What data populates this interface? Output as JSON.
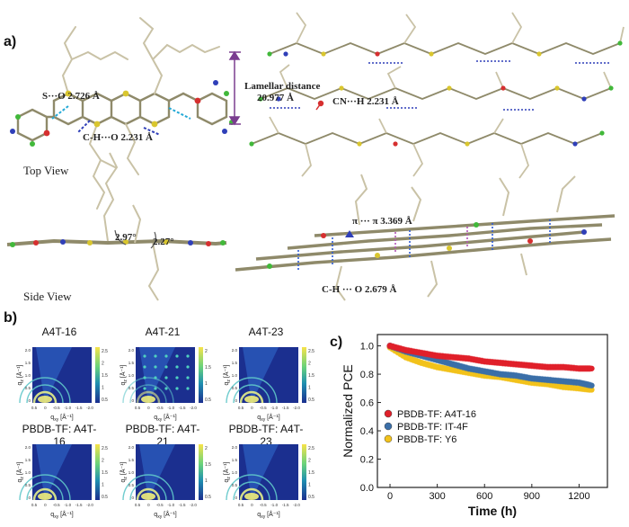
{
  "panel_a": {
    "letter": "a)",
    "top_view_label": "Top View",
    "side_view_label": "Side View",
    "annotations": {
      "s_o": "S···O 2.726 Å",
      "ch_o_top": "C-H···O 2.231 Å",
      "lamellar_title": "Lamellar distance",
      "lamellar_value": "20.977 Å",
      "cn_h": "CN···H 2.231 Å",
      "angle1": "2.97°",
      "angle2": "2.27°",
      "pi_pi": "π ··· π  3.369 Å",
      "ch_o_side": "C-H ··· O  2.679 Å"
    },
    "colors": {
      "lamellar_bracket": "#7a3d8f",
      "carbon": "#8f8a6a",
      "hydrogen": "#e4e0cc",
      "sulfur": "#d9c62e",
      "oxygen": "#d62f2f",
      "nitrogen": "#2f3fb8",
      "fluorine": "#41b83a",
      "hbond_blue": "#2f5cd4",
      "hbond_purple": "#b455b8",
      "hbond_cyan": "#24a9d6"
    }
  },
  "panel_b": {
    "letter": "b)",
    "maps": [
      {
        "title": "A4T-16",
        "colorbar": [
          "2.5",
          "2",
          "1.5",
          "1",
          "0.5"
        ]
      },
      {
        "title": "A4T-21",
        "colorbar": [
          "2",
          "1.5",
          "1",
          "0.5"
        ]
      },
      {
        "title": "A4T-23",
        "colorbar": [
          "2.5",
          "2",
          "1.5",
          "1",
          "0.5"
        ]
      },
      {
        "title": "PBDB-TF: A4T-16",
        "colorbar": [
          "2.5",
          "2",
          "1.5",
          "1",
          "0.5"
        ]
      },
      {
        "title": "PBDB-TF: A4T-21",
        "colorbar": [
          "2",
          "1.5",
          "1",
          "0.5"
        ]
      },
      {
        "title": "PBDB-TF: A4T-23",
        "colorbar": [
          "2.5",
          "2",
          "1.5",
          "1",
          "0.5"
        ]
      }
    ],
    "x_axis_label": "q",
    "x_axis_sub": "xy",
    "x_axis_unit": " [Å⁻¹]",
    "y_axis_label": "q",
    "y_axis_sub": "z",
    "y_axis_unit": " [Å⁻¹]",
    "x_ticks": [
      "0.5",
      "0",
      "-0.5",
      "-1.0",
      "-1.5",
      "-2.0"
    ],
    "y_ticks": [
      "2.0",
      "1.5",
      "1.0",
      "0.5",
      "0"
    ]
  },
  "panel_c": {
    "letter": "c)",
    "chart_data": {
      "type": "scatter",
      "xlabel": "Time (h)",
      "ylabel": "Normalized PCE",
      "xlim": [
        -80,
        1380
      ],
      "ylim": [
        0.0,
        1.08
      ],
      "xticks": [
        0,
        300,
        600,
        900,
        1200
      ],
      "yticks": [
        0.0,
        0.2,
        0.4,
        0.6,
        0.8,
        1.0
      ],
      "legend_position": "center-left",
      "series": [
        {
          "name": "PBDB-TF: A4T-16",
          "color": "#e0202a",
          "x": [
            0,
            100,
            200,
            300,
            400,
            500,
            600,
            700,
            800,
            900,
            1000,
            1100,
            1200,
            1280
          ],
          "y": [
            1.0,
            0.97,
            0.95,
            0.93,
            0.92,
            0.91,
            0.89,
            0.88,
            0.87,
            0.86,
            0.85,
            0.85,
            0.84,
            0.84
          ]
        },
        {
          "name": "PBDB-TF: IT-4F",
          "color": "#3b6fa8",
          "x": [
            0,
            100,
            200,
            300,
            400,
            500,
            600,
            700,
            800,
            900,
            1000,
            1100,
            1200,
            1280
          ],
          "y": [
            1.0,
            0.96,
            0.93,
            0.9,
            0.87,
            0.84,
            0.82,
            0.8,
            0.79,
            0.77,
            0.76,
            0.75,
            0.74,
            0.72
          ]
        },
        {
          "name": "PBDB-TF: Y6",
          "color": "#f2c21b",
          "x": [
            0,
            100,
            200,
            300,
            400,
            500,
            600,
            700,
            800,
            900,
            1000,
            1100,
            1200,
            1280
          ],
          "y": [
            0.99,
            0.92,
            0.88,
            0.85,
            0.83,
            0.81,
            0.79,
            0.78,
            0.76,
            0.74,
            0.73,
            0.71,
            0.7,
            0.69
          ]
        }
      ]
    }
  }
}
